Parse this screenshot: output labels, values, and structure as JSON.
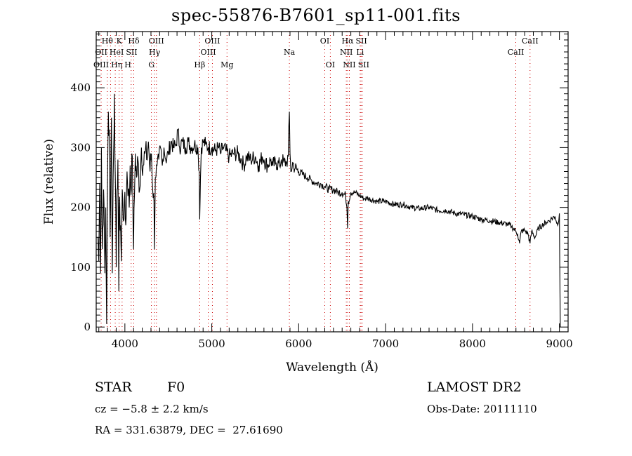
{
  "chart_data": {
    "type": "line",
    "title": "spec-55876-B7601_sp11-001.fits",
    "xlabel": "Wavelength (Å)",
    "ylabel": "Flux (relative)",
    "xlim": [
      3670,
      9100
    ],
    "ylim": [
      -8,
      494
    ],
    "xticks": [
      4000,
      5000,
      6000,
      7000,
      8000,
      9000
    ],
    "yticks": [
      0,
      100,
      200,
      300,
      400
    ],
    "grid": false,
    "series": [
      {
        "name": "spectrum",
        "points": [
          [
            3690,
            150
          ],
          [
            3700,
            110
          ],
          [
            3710,
            240
          ],
          [
            3720,
            90
          ],
          [
            3730,
            300
          ],
          [
            3740,
            130
          ],
          [
            3755,
            230
          ],
          [
            3770,
            90
          ],
          [
            3780,
            200
          ],
          [
            3790,
            5
          ],
          [
            3800,
            240
          ],
          [
            3810,
            360
          ],
          [
            3820,
            330
          ],
          [
            3830,
            150
          ],
          [
            3845,
            350
          ],
          [
            3855,
            90
          ],
          [
            3865,
            250
          ],
          [
            3880,
            390
          ],
          [
            3890,
            250
          ],
          [
            3900,
            100
          ],
          [
            3910,
            230
          ],
          [
            3920,
            280
          ],
          [
            3930,
            60
          ],
          [
            3935,
            200
          ],
          [
            3950,
            170
          ],
          [
            3960,
            110
          ],
          [
            3970,
            230
          ],
          [
            3980,
            180
          ],
          [
            3995,
            210
          ],
          [
            4010,
            170
          ],
          [
            4025,
            260
          ],
          [
            4040,
            230
          ],
          [
            4050,
            200
          ],
          [
            4060,
            270
          ],
          [
            4070,
            220
          ],
          [
            4080,
            290
          ],
          [
            4090,
            230
          ],
          [
            4100,
            130
          ],
          [
            4110,
            220
          ],
          [
            4120,
            290
          ],
          [
            4135,
            250
          ],
          [
            4150,
            280
          ],
          [
            4170,
            230
          ],
          [
            4190,
            300
          ],
          [
            4210,
            270
          ],
          [
            4230,
            290
          ],
          [
            4250,
            280
          ],
          [
            4270,
            310
          ],
          [
            4290,
            260
          ],
          [
            4305,
            290
          ],
          [
            4320,
            230
          ],
          [
            4335,
            210
          ],
          [
            4340,
            130
          ],
          [
            4350,
            250
          ],
          [
            4370,
            270
          ],
          [
            4390,
            280
          ],
          [
            4410,
            300
          ],
          [
            4430,
            270
          ],
          [
            4450,
            300
          ],
          [
            4470,
            280
          ],
          [
            4500,
            290
          ],
          [
            4530,
            310
          ],
          [
            4560,
            300
          ],
          [
            4590,
            305
          ],
          [
            4610,
            330
          ],
          [
            4630,
            300
          ],
          [
            4660,
            310
          ],
          [
            4700,
            300
          ],
          [
            4730,
            310
          ],
          [
            4760,
            300
          ],
          [
            4800,
            305
          ],
          [
            4840,
            300
          ],
          [
            4855,
            260
          ],
          [
            4861,
            180
          ],
          [
            4870,
            250
          ],
          [
            4880,
            300
          ],
          [
            4900,
            310
          ],
          [
            4930,
            305
          ],
          [
            4960,
            300
          ],
          [
            5000,
            300
          ],
          [
            5040,
            295
          ],
          [
            5080,
            300
          ],
          [
            5100,
            290
          ],
          [
            5130,
            300
          ],
          [
            5160,
            295
          ],
          [
            5200,
            285
          ],
          [
            5250,
            290
          ],
          [
            5300,
            290
          ],
          [
            5340,
            280
          ],
          [
            5370,
            270
          ],
          [
            5400,
            285
          ],
          [
            5450,
            280
          ],
          [
            5500,
            285
          ],
          [
            5540,
            270
          ],
          [
            5580,
            285
          ],
          [
            5600,
            280
          ],
          [
            5640,
            270
          ],
          [
            5680,
            280
          ],
          [
            5700,
            270
          ],
          [
            5740,
            275
          ],
          [
            5780,
            270
          ],
          [
            5800,
            280
          ],
          [
            5830,
            275
          ],
          [
            5860,
            275
          ],
          [
            5880,
            285
          ],
          [
            5893,
            360
          ],
          [
            5900,
            290
          ],
          [
            5910,
            260
          ],
          [
            5930,
            275
          ],
          [
            5960,
            265
          ],
          [
            6000,
            260
          ],
          [
            6050,
            255
          ],
          [
            6100,
            250
          ],
          [
            6150,
            245
          ],
          [
            6200,
            240
          ],
          [
            6250,
            240
          ],
          [
            6300,
            235
          ],
          [
            6350,
            230
          ],
          [
            6400,
            230
          ],
          [
            6450,
            225
          ],
          [
            6500,
            225
          ],
          [
            6540,
            220
          ],
          [
            6555,
            200
          ],
          [
            6563,
            165
          ],
          [
            6570,
            210
          ],
          [
            6600,
            225
          ],
          [
            6650,
            225
          ],
          [
            6700,
            220
          ],
          [
            6750,
            215
          ],
          [
            6800,
            215
          ],
          [
            6900,
            210
          ],
          [
            7000,
            210
          ],
          [
            7100,
            205
          ],
          [
            7200,
            205
          ],
          [
            7300,
            200
          ],
          [
            7400,
            198
          ],
          [
            7500,
            200
          ],
          [
            7600,
            195
          ],
          [
            7700,
            195
          ],
          [
            7800,
            190
          ],
          [
            7900,
            188
          ],
          [
            8000,
            185
          ],
          [
            8100,
            180
          ],
          [
            8200,
            178
          ],
          [
            8300,
            175
          ],
          [
            8400,
            172
          ],
          [
            8450,
            168
          ],
          [
            8500,
            160
          ],
          [
            8520,
            155
          ],
          [
            8542,
            140
          ],
          [
            8560,
            160
          ],
          [
            8600,
            162
          ],
          [
            8640,
            155
          ],
          [
            8662,
            140
          ],
          [
            8680,
            160
          ],
          [
            8720,
            150
          ],
          [
            8760,
            165
          ],
          [
            8800,
            170
          ],
          [
            8850,
            175
          ],
          [
            8900,
            180
          ],
          [
            8950,
            185
          ],
          [
            8980,
            170
          ],
          [
            9000,
            190
          ],
          [
            9010,
            0
          ]
        ]
      }
    ],
    "line_markers": [
      {
        "label": "Hθ",
        "wavelength": 3798,
        "row": 1
      },
      {
        "label": "K",
        "wavelength": 3934,
        "row": 1
      },
      {
        "label": "Hδ",
        "wavelength": 4102,
        "row": 1
      },
      {
        "label": "OIII",
        "wavelength": 4363,
        "row": 1
      },
      {
        "label": "OIII",
        "wavelength": 5007,
        "row": 1
      },
      {
        "label": "OI",
        "wavelength": 6300,
        "row": 1
      },
      {
        "label": "Hα",
        "wavelength": 6563,
        "row": 1
      },
      {
        "label": "SII",
        "wavelength": 6717,
        "row": 1
      },
      {
        "label": "CaII",
        "wavelength": 8662,
        "row": 1
      },
      {
        "label": "OII",
        "wavelength": 3727,
        "row": 2
      },
      {
        "label": "HeI",
        "wavelength": 3889,
        "row": 2
      },
      {
        "label": "SII",
        "wavelength": 4072,
        "row": 2
      },
      {
        "label": "Hγ",
        "wavelength": 4341,
        "row": 2
      },
      {
        "label": "OIII",
        "wavelength": 4959,
        "row": 2
      },
      {
        "label": "Na",
        "wavelength": 5893,
        "row": 2
      },
      {
        "label": "NII",
        "wavelength": 6548,
        "row": 2
      },
      {
        "label": "Li",
        "wavelength": 6707,
        "row": 2
      },
      {
        "label": "CaII",
        "wavelength": 8498,
        "row": 2
      },
      {
        "label": "OIII",
        "wavelength": 3727,
        "row": 3
      },
      {
        "label": "Hη",
        "wavelength": 3835,
        "row": 3
      },
      {
        "label": "H",
        "wavelength": 3968,
        "row": 3
      },
      {
        "label": "G",
        "wavelength": 4305,
        "row": 3
      },
      {
        "label": "Hβ",
        "wavelength": 4861,
        "row": 3
      },
      {
        "label": "Mg",
        "wavelength": 5175,
        "row": 3
      },
      {
        "label": "OI",
        "wavelength": 6364,
        "row": 3
      },
      {
        "label": "NII",
        "wavelength": 6583,
        "row": 3
      },
      {
        "label": "SII",
        "wavelength": 6731,
        "row": 3
      }
    ],
    "marker_color": "#cc0000"
  },
  "info": {
    "object_class": "STAR",
    "subclass": "F0",
    "redshift": "cz = −5.8 ± 2.2 km/s",
    "coords": "RA = 331.63879, DEC =  27.61690",
    "survey": "LAMOST DR2",
    "obs_date": "Obs-Date: 20111110"
  }
}
